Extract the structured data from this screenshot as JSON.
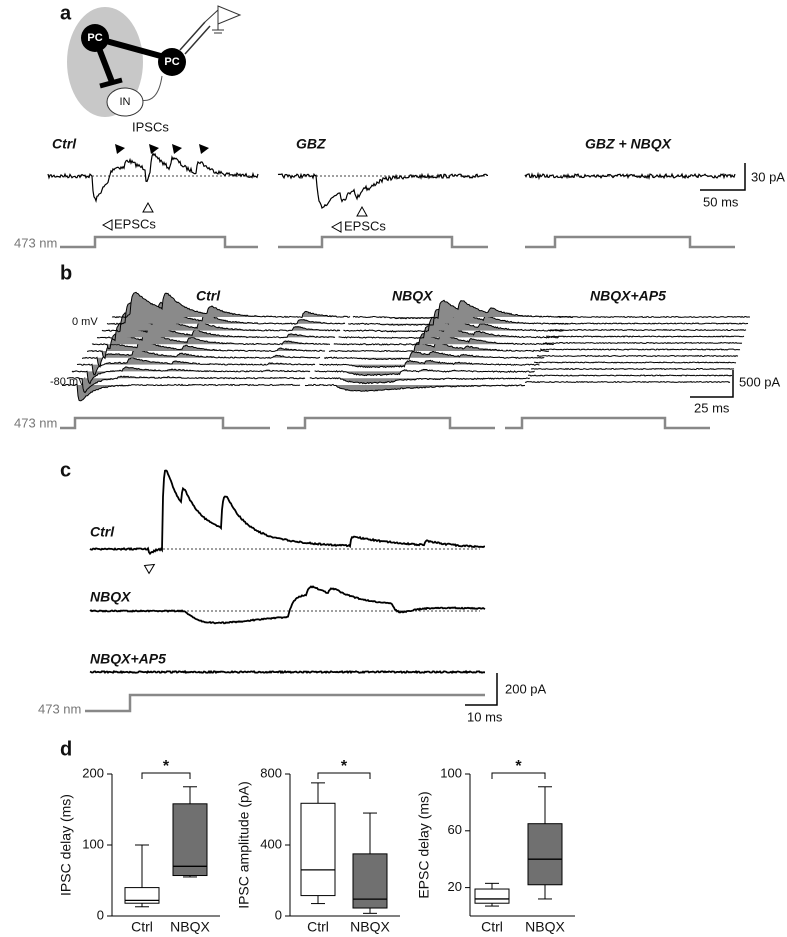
{
  "panel_a": {
    "label": "a",
    "schematic": {
      "cell1": "PC",
      "cell2": "PC",
      "interneuron": "IN"
    },
    "traces": [
      "Ctrl",
      "GBZ",
      "GBZ + NBQX"
    ],
    "ipsc_label": "IPSCs",
    "epsc_labels": [
      "EPSCs",
      "EPSCs"
    ],
    "scale_current": "30 pA",
    "scale_time": "50 ms",
    "light": "473 nm"
  },
  "panel_b": {
    "label": "b",
    "traces": [
      "Ctrl",
      "NBQX",
      "NBQX+AP5"
    ],
    "voltage_top": "0 mV",
    "voltage_bottom": "-80 mV",
    "scale_current": "500 pA",
    "scale_time": "25 ms",
    "light": "473 nm"
  },
  "panel_c": {
    "label": "c",
    "traces": [
      "Ctrl",
      "NBQX",
      "NBQX+AP5"
    ],
    "scale_current": "200 pA",
    "scale_time": "10 ms",
    "light": "473 nm"
  },
  "panel_d": {
    "label": "d"
  },
  "chart_data": [
    {
      "type": "box",
      "y_label": "IPSC delay (ms)",
      "categories": [
        "Ctrl",
        "NBQX"
      ],
      "values": [
        {
          "min": 13,
          "q1": 18,
          "median": 22,
          "q3": 40,
          "max": 100
        },
        {
          "min": 55,
          "q1": 57,
          "median": 70,
          "q3": 158,
          "max": 182
        }
      ],
      "colors": [
        "#ffffff",
        "#707070"
      ],
      "ylim": [
        0,
        200
      ],
      "yticks": [
        0,
        100,
        200
      ],
      "significance": "*"
    },
    {
      "type": "box",
      "y_label": "IPSC amplitude (pA)",
      "categories": [
        "Ctrl",
        "NBQX"
      ],
      "values": [
        {
          "min": 70,
          "q1": 115,
          "median": 260,
          "q3": 635,
          "max": 750
        },
        {
          "min": 15,
          "q1": 45,
          "median": 95,
          "q3": 350,
          "max": 580
        }
      ],
      "colors": [
        "#ffffff",
        "#707070"
      ],
      "ylim": [
        0,
        800
      ],
      "yticks": [
        0,
        400,
        800
      ],
      "significance": "*"
    },
    {
      "type": "box",
      "y_label": "EPSC delay (ms)",
      "categories": [
        "Ctrl",
        "NBQX"
      ],
      "values": [
        {
          "min": 7,
          "q1": 9,
          "median": 12,
          "q3": 19,
          "max": 23
        },
        {
          "min": 12,
          "q1": 22,
          "median": 40,
          "q3": 65,
          "max": 91
        }
      ],
      "colors": [
        "#ffffff",
        "#707070"
      ],
      "ylim": [
        0,
        100
      ],
      "yticks": [
        20,
        60,
        100
      ],
      "significance": "*"
    }
  ]
}
